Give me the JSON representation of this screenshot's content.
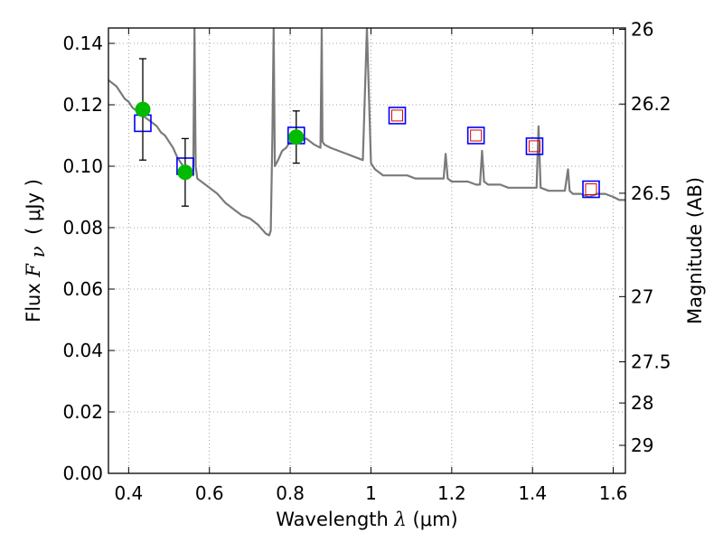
{
  "chart_data": {
    "type": "scatter",
    "title": "",
    "xlabel": "Wavelength  λ (μm)",
    "xlabel_parts": {
      "text": "Wavelength ",
      "symbol": "λ",
      "unit": "(μm)"
    },
    "ylabel": "Flux  Fν  ( μJy )",
    "ylabel_parts": {
      "text": "Flux ",
      "symbol": "F",
      "subscript": "ν",
      "unit": "( μJy )"
    },
    "y2label": "Magnitude (AB)",
    "xlim": [
      0.35,
      1.63
    ],
    "ylim": [
      0.0,
      0.145
    ],
    "grid": true,
    "grid_style": "dotted",
    "x_ticks": [
      {
        "value": 0.4,
        "label": "0.4"
      },
      {
        "value": 0.6,
        "label": "0.6"
      },
      {
        "value": 0.8,
        "label": "0.8"
      },
      {
        "value": 1.0,
        "label": "1"
      },
      {
        "value": 1.2,
        "label": "1.2"
      },
      {
        "value": 1.4,
        "label": "1.4"
      },
      {
        "value": 1.6,
        "label": "1.6"
      }
    ],
    "y_ticks": [
      {
        "value": 0.0,
        "label": "0.00"
      },
      {
        "value": 0.02,
        "label": "0.02"
      },
      {
        "value": 0.04,
        "label": "0.04"
      },
      {
        "value": 0.06,
        "label": "0.06"
      },
      {
        "value": 0.08,
        "label": "0.08"
      },
      {
        "value": 0.1,
        "label": "0.10"
      },
      {
        "value": 0.12,
        "label": "0.12"
      },
      {
        "value": 0.14,
        "label": "0.14"
      }
    ],
    "mag_ticks": [
      {
        "mag": 26,
        "label": "26"
      },
      {
        "mag": 26.2,
        "label": "26.2"
      },
      {
        "mag": 26.5,
        "label": "26.5"
      },
      {
        "mag": 27,
        "label": "27"
      },
      {
        "mag": 27.5,
        "label": "27.5"
      },
      {
        "mag": 28,
        "label": "28"
      },
      {
        "mag": 29,
        "label": "29"
      }
    ],
    "colors": {
      "sed_line": "#7a7a7a",
      "observed": "#00bb00",
      "errorbar": "#000000",
      "model_synthetic": "#0000ff",
      "model_inner": "#dd0000",
      "axes": "#000000",
      "grid": "#888888"
    },
    "series": [
      {
        "kind": "line",
        "x": [
          0.35,
          0.36,
          0.37,
          0.38,
          0.39,
          0.4,
          0.41,
          0.42,
          0.43,
          0.44,
          0.45,
          0.46,
          0.47,
          0.48,
          0.49,
          0.5,
          0.51,
          0.52,
          0.53,
          0.54,
          0.55,
          0.56,
          0.563,
          0.566,
          0.57,
          0.58,
          0.6,
          0.62,
          0.64,
          0.66,
          0.68,
          0.7,
          0.72,
          0.74,
          0.748,
          0.752,
          0.756,
          0.759,
          0.762,
          0.77,
          0.78,
          0.79,
          0.8,
          0.82,
          0.84,
          0.86,
          0.875,
          0.878,
          0.88,
          0.885,
          0.9,
          0.92,
          0.94,
          0.96,
          0.98,
          0.99,
          1.0,
          1.01,
          1.02,
          1.03,
          1.05,
          1.07,
          1.09,
          1.11,
          1.13,
          1.15,
          1.17,
          1.18,
          1.185,
          1.19,
          1.2,
          1.22,
          1.24,
          1.26,
          1.27,
          1.275,
          1.28,
          1.29,
          1.3,
          1.32,
          1.34,
          1.36,
          1.38,
          1.4,
          1.41,
          1.415,
          1.42,
          1.44,
          1.46,
          1.48,
          1.488,
          1.492,
          1.5,
          1.52,
          1.54,
          1.56,
          1.58,
          1.6,
          1.615,
          1.63
        ],
        "y": [
          0.128,
          0.127,
          0.126,
          0.124,
          0.122,
          0.121,
          0.119,
          0.118,
          0.117,
          0.116,
          0.115,
          0.114,
          0.113,
          0.111,
          0.11,
          0.108,
          0.106,
          0.103,
          0.101,
          0.099,
          0.098,
          0.097,
          0.145,
          0.1,
          0.096,
          0.095,
          0.093,
          0.091,
          0.088,
          0.086,
          0.084,
          0.083,
          0.081,
          0.078,
          0.0775,
          0.079,
          0.11,
          0.145,
          0.1,
          0.102,
          0.105,
          0.106,
          0.108,
          0.108,
          0.109,
          0.107,
          0.106,
          0.145,
          0.108,
          0.107,
          0.106,
          0.105,
          0.104,
          0.103,
          0.102,
          0.145,
          0.101,
          0.099,
          0.098,
          0.097,
          0.097,
          0.097,
          0.097,
          0.096,
          0.096,
          0.096,
          0.096,
          0.096,
          0.104,
          0.096,
          0.095,
          0.095,
          0.095,
          0.094,
          0.094,
          0.105,
          0.095,
          0.094,
          0.094,
          0.094,
          0.093,
          0.093,
          0.093,
          0.093,
          0.093,
          0.113,
          0.093,
          0.092,
          0.092,
          0.092,
          0.099,
          0.092,
          0.091,
          0.091,
          0.09,
          0.091,
          0.091,
          0.09,
          0.089,
          0.089
        ]
      },
      {
        "kind": "points-with-error",
        "x": [
          0.435,
          0.54,
          0.815
        ],
        "y": [
          0.1185,
          0.098,
          0.1095
        ],
        "yerr_low": [
          0.0165,
          0.011,
          0.0085
        ],
        "yerr_high": [
          0.0165,
          0.011,
          0.0085
        ]
      },
      {
        "kind": "open-squares",
        "x": [
          0.435,
          0.54,
          0.815,
          1.065,
          1.26,
          1.405,
          1.545
        ],
        "y": [
          0.114,
          0.1,
          0.11,
          0.1165,
          0.11,
          0.1065,
          0.0925
        ]
      },
      {
        "kind": "inner-squares",
        "x": [
          1.065,
          1.26,
          1.405,
          1.545
        ],
        "y": [
          0.1165,
          0.11,
          0.1065,
          0.0925
        ]
      }
    ]
  }
}
